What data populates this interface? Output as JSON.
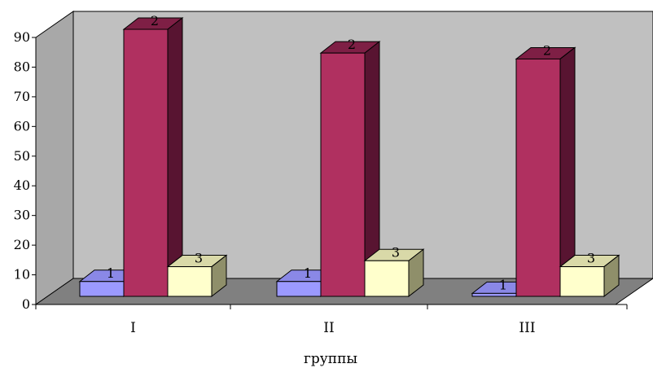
{
  "chart_data": {
    "type": "bar",
    "title": "",
    "xlabel": "группы",
    "ylabel": "",
    "ylim": [
      0,
      90
    ],
    "yticks": [
      0,
      10,
      20,
      30,
      40,
      50,
      60,
      70,
      80,
      90
    ],
    "categories": [
      "I",
      "II",
      "III"
    ],
    "series": [
      {
        "label": "1",
        "values": [
          5,
          5,
          1
        ],
        "colors": {
          "front": "#9b99ff",
          "top": "#8a88e6",
          "side": "#5c5aa3"
        }
      },
      {
        "label": "2",
        "values": [
          90,
          82,
          80
        ],
        "colors": {
          "front": "#b03060",
          "top": "#7e1f45",
          "side": "#581431"
        }
      },
      {
        "label": "3",
        "values": [
          10,
          12,
          10
        ],
        "colors": {
          "front": "#ffffcc",
          "top": "#d9d9a8",
          "side": "#8f8f6a"
        }
      }
    ],
    "style": {
      "back_wall": "#c0c0c0",
      "side_wall": "#a8a8a8",
      "floor": "#808080",
      "grid": false,
      "legend": "none",
      "projection": "3d"
    }
  }
}
